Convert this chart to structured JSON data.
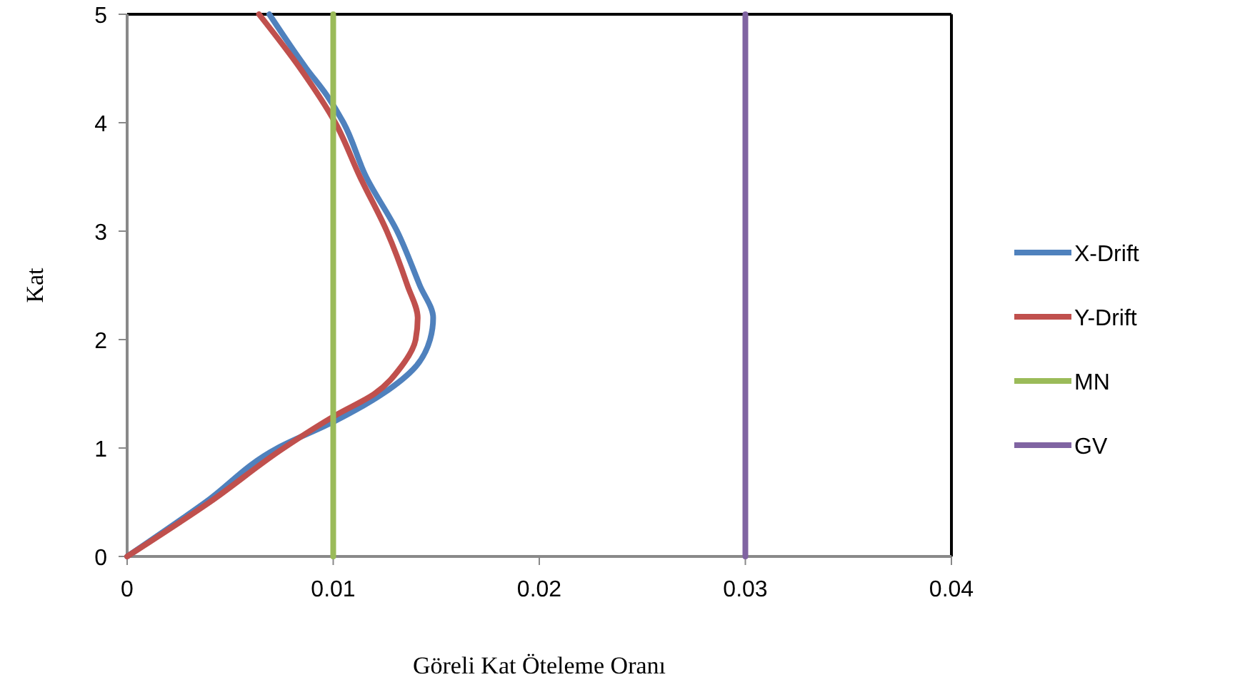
{
  "chart_data": {
    "type": "line",
    "xlabel": "Göreli Kat Öteleme Oranı",
    "ylabel": "Kat",
    "xlim": [
      0,
      0.04
    ],
    "xticks": [
      0,
      0.01,
      0.02,
      0.03,
      0.04
    ],
    "ylim": [
      0,
      5
    ],
    "yticks": [
      0,
      1,
      2,
      3,
      4,
      5
    ],
    "grid": false,
    "legend": "right",
    "marker": "none",
    "line_style": "solid",
    "series": [
      {
        "name": "X-Drift",
        "color": "#4f81bd",
        "x": [
          0,
          0.0038,
          0.0073,
          0.0101,
          0.0124,
          0.014,
          0.0147,
          0.01485,
          0.0142,
          0.0131,
          0.0116,
          0.0105,
          0.0097,
          0.0087,
          0.0069
        ],
        "values": [
          0,
          0.5,
          1,
          1.25,
          1.5,
          1.75,
          2,
          2.2,
          2.5,
          3,
          3.5,
          4,
          4.25,
          4.5,
          5
        ]
      },
      {
        "name": "Y-Drift",
        "color": "#c0504d",
        "x": [
          0,
          0.004,
          0.0076,
          0.0101,
          0.012,
          0.0133,
          0.014,
          0.0141,
          0.0136,
          0.0126,
          0.0113,
          0.0101,
          0.0084,
          0.0064
        ],
        "values": [
          0,
          0.5,
          1,
          1.3,
          1.5,
          1.75,
          2,
          2.2,
          2.5,
          3,
          3.5,
          4,
          4.5,
          5
        ]
      },
      {
        "name": "MN",
        "color": "#9bbb59",
        "x": [
          0.01,
          0.01
        ],
        "values": [
          0,
          5
        ]
      },
      {
        "name": "GV",
        "color": "#8064a2",
        "x": [
          0.03,
          0.03
        ],
        "values": [
          0,
          5
        ]
      }
    ]
  }
}
